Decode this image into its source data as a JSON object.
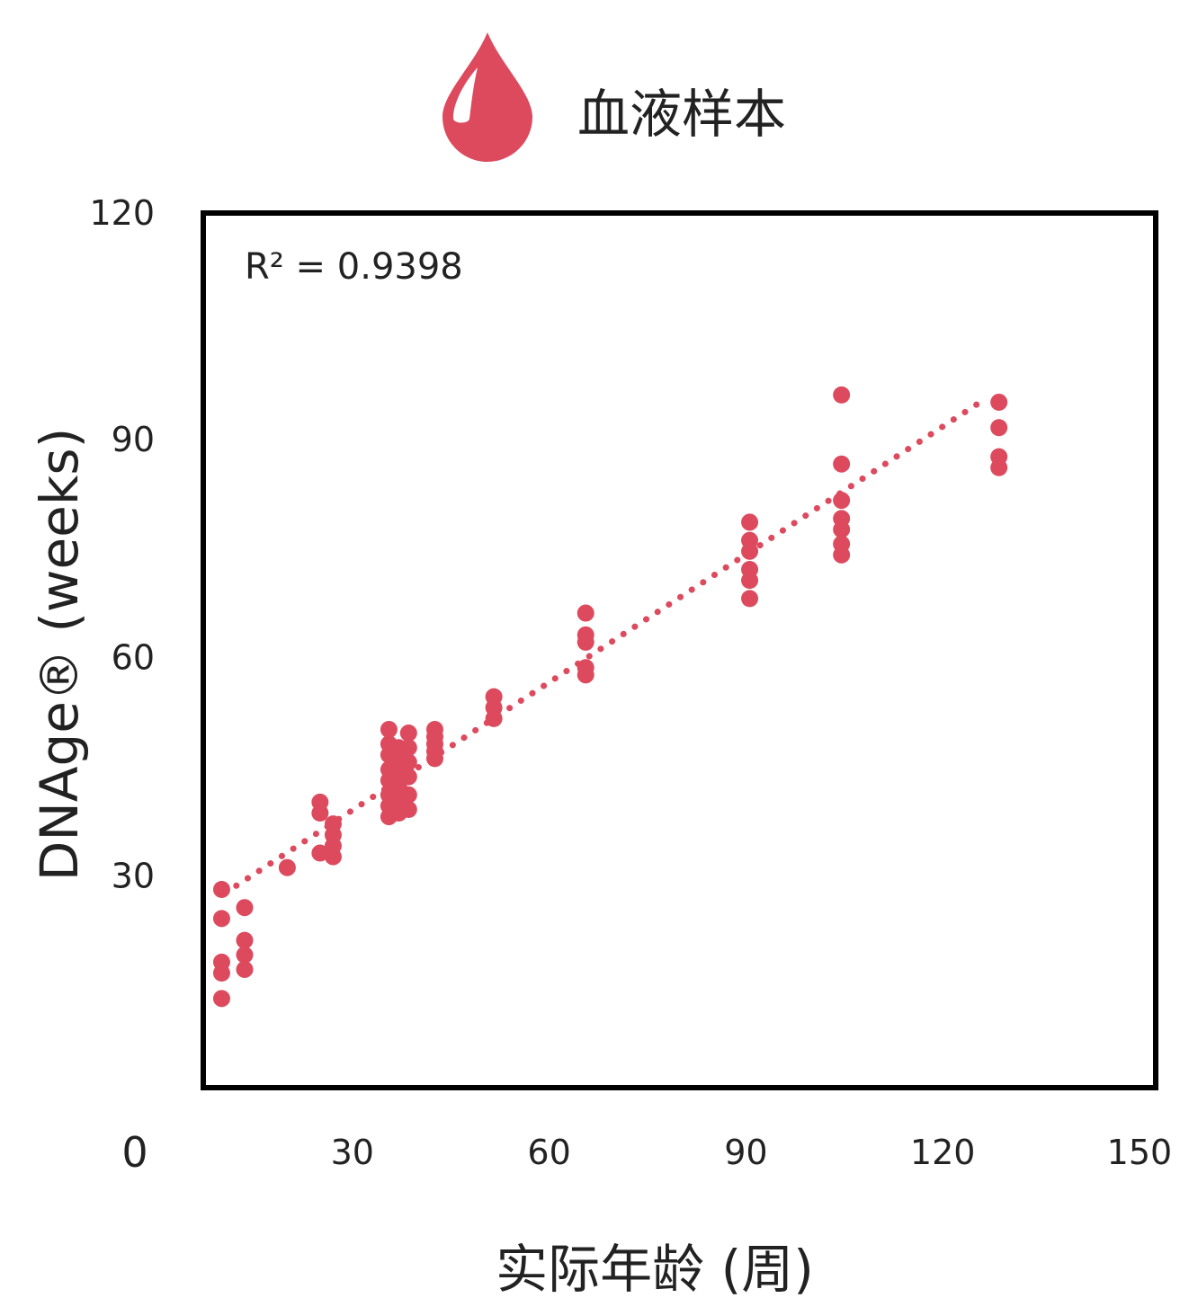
{
  "colors": {
    "accent": "#dd4a5e",
    "axis": "#000000",
    "text": "#222222"
  },
  "icons": {
    "header_icon": "blood-drop-icon"
  },
  "chart_data": {
    "type": "scatter",
    "title": "血液样本",
    "xlabel": "实际年龄 (周)",
    "ylabel": "DNAge® (weeks)",
    "annotation": "R² = 0.9398",
    "xlim": [
      0,
      150
    ],
    "ylim": [
      0,
      120
    ],
    "xticks": [
      "0",
      "30",
      "60",
      "90",
      "120",
      "150"
    ],
    "yticks": [
      "30",
      "60",
      "90",
      "120"
    ],
    "grid": false,
    "legend": "none",
    "series": [
      {
        "points": [
          [
            13.5,
            13
          ],
          [
            13.5,
            16.5
          ],
          [
            13.5,
            18
          ],
          [
            13.5,
            24
          ],
          [
            13.5,
            28
          ],
          [
            17,
            17
          ],
          [
            17,
            19
          ],
          [
            17,
            21
          ],
          [
            17,
            25.5
          ],
          [
            23.5,
            31
          ],
          [
            28.5,
            33
          ],
          [
            28.5,
            38.5
          ],
          [
            28.5,
            40
          ],
          [
            30.5,
            32.5
          ],
          [
            30.5,
            34
          ],
          [
            30.5,
            35.5
          ],
          [
            30.5,
            37
          ],
          [
            39,
            38
          ],
          [
            39,
            39.5
          ],
          [
            39,
            41
          ],
          [
            39,
            43
          ],
          [
            39,
            44.5
          ],
          [
            39,
            46.5
          ],
          [
            39,
            48
          ],
          [
            39,
            50
          ],
          [
            40.5,
            38.5
          ],
          [
            40.5,
            40.5
          ],
          [
            40.5,
            42
          ],
          [
            40.5,
            44
          ],
          [
            40.5,
            46
          ],
          [
            40.5,
            47.5
          ],
          [
            42,
            39
          ],
          [
            42,
            41
          ],
          [
            42,
            43.5
          ],
          [
            42,
            45.5
          ],
          [
            42,
            47.5
          ],
          [
            42,
            49.5
          ],
          [
            46,
            46
          ],
          [
            46,
            47
          ],
          [
            46,
            48
          ],
          [
            46,
            49
          ],
          [
            46,
            50
          ],
          [
            55,
            51.5
          ],
          [
            55,
            53
          ],
          [
            55,
            54.5
          ],
          [
            69,
            57.5
          ],
          [
            69,
            58.5
          ],
          [
            69,
            62
          ],
          [
            69,
            63
          ],
          [
            69,
            66
          ],
          [
            94,
            68
          ],
          [
            94,
            70.5
          ],
          [
            94,
            72
          ],
          [
            94,
            74.5
          ],
          [
            94,
            76
          ],
          [
            94,
            78.5
          ],
          [
            108,
            74
          ],
          [
            108,
            75.5
          ],
          [
            108,
            77.5
          ],
          [
            108,
            79
          ],
          [
            108,
            81.5
          ],
          [
            108,
            86.5
          ],
          [
            108,
            96
          ],
          [
            132,
            86
          ],
          [
            132,
            87.5
          ],
          [
            132,
            91.5
          ],
          [
            132,
            95
          ]
        ]
      }
    ],
    "trendline": {
      "style": "dotted",
      "from": [
        14,
        27.5
      ],
      "to": [
        130,
        95.5
      ]
    }
  }
}
